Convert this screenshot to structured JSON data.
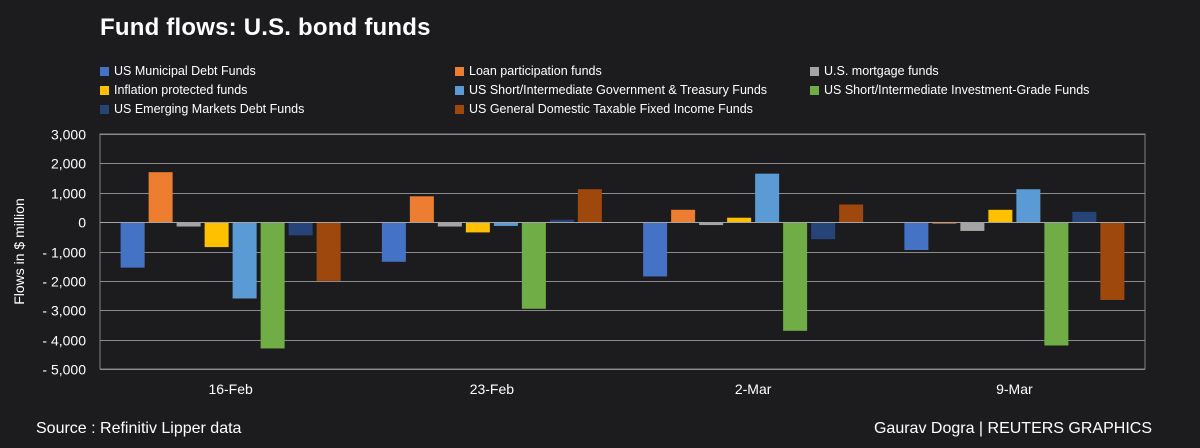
{
  "title": "Fund flows: U.S. bond funds",
  "source": "Source : Refinitiv Lipper data",
  "credit": "Gaurav Dogra | REUTERS GRAPHICS",
  "chart_data": {
    "type": "bar",
    "title": "Fund flows: U.S. bond funds",
    "xlabel": "",
    "ylabel": "Flows in $ million",
    "ylim": [
      -5000,
      3000
    ],
    "yticks": [
      3000,
      2000,
      1000,
      0,
      -1000,
      -2000,
      -3000,
      -4000,
      -5000
    ],
    "ytick_labels": [
      "3,000",
      "2,000",
      "1,000",
      "0",
      "- 1,000",
      "- 2,000",
      "- 3,000",
      "- 4,000",
      "- 5,000"
    ],
    "grid": true,
    "legend_position": "top",
    "categories": [
      "16-Feb",
      "23-Feb",
      "2-Mar",
      "9-Mar"
    ],
    "series": [
      {
        "name": "US Municipal Debt Funds",
        "color": "#4472c4",
        "values": [
          -1550,
          -1350,
          -1850,
          -950
        ]
      },
      {
        "name": "Loan participation funds",
        "color": "#ed7d31",
        "values": [
          1700,
          880,
          420,
          -50
        ]
      },
      {
        "name": "U.S. mortgage funds",
        "color": "#a5a5a5",
        "values": [
          -150,
          -150,
          -100,
          -300
        ]
      },
      {
        "name": "Inflation protected funds",
        "color": "#ffc000",
        "values": [
          -850,
          -350,
          150,
          420
        ]
      },
      {
        "name": "US Short/Intermediate Government & Treasury Funds",
        "color": "#5b9bd5",
        "values": [
          -2600,
          -130,
          1650,
          1120
        ]
      },
      {
        "name": "US Short/Intermediate Investment-Grade Funds",
        "color": "#70ad47",
        "values": [
          -4300,
          -2950,
          -3700,
          -4200
        ]
      },
      {
        "name": "US Emerging Markets Debt Funds",
        "color": "#264478",
        "values": [
          -450,
          80,
          -580,
          350
        ]
      },
      {
        "name": "US General Domestic Taxable Fixed Income Funds",
        "color": "#9e480e",
        "values": [
          -2000,
          1120,
          600,
          -2650
        ]
      }
    ]
  }
}
